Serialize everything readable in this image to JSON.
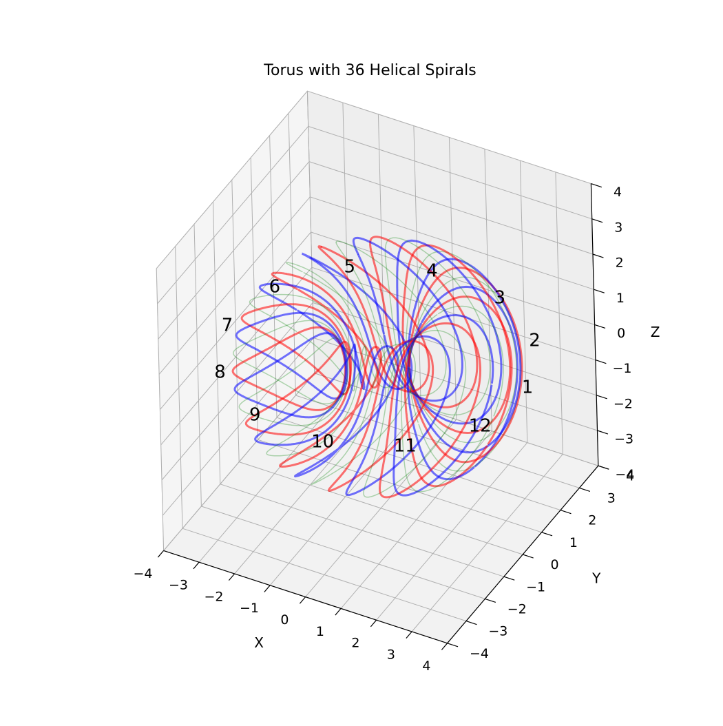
{
  "chart_data": {
    "type": "3d-line",
    "title": "Torus with 36 Helical Spirals",
    "xlabel": "X",
    "ylabel": "Y",
    "zlabel": "Z",
    "xlim": [
      -4,
      4
    ],
    "ylim": [
      -4,
      4
    ],
    "zlim": [
      -4,
      4
    ],
    "x_ticks": [
      -4,
      -3,
      -2,
      -1,
      0,
      1,
      2,
      3,
      4
    ],
    "y_ticks": [
      -4,
      -3,
      -2,
      -1,
      0,
      1,
      2,
      3,
      4
    ],
    "z_ticks": [
      -4,
      -3,
      -2,
      -1,
      0,
      1,
      2,
      3,
      4
    ],
    "grid": true,
    "torus": {
      "major_radius": 2.2,
      "minor_radius": 1.4,
      "spiral_count": 36,
      "turns_per_spiral": 1
    },
    "series": [
      {
        "color": "#ff0000",
        "opacity": 0.55,
        "linewidth": 3,
        "count": 12
      },
      {
        "color": "#0000ff",
        "opacity": 0.55,
        "linewidth": 3,
        "count": 12
      },
      {
        "color": "#008000",
        "opacity": 0.3,
        "linewidth": 1.5,
        "count": 12
      }
    ],
    "annotations": [
      "1",
      "2",
      "3",
      "4",
      "5",
      "6",
      "7",
      "8",
      "9",
      "10",
      "11",
      "12"
    ]
  }
}
